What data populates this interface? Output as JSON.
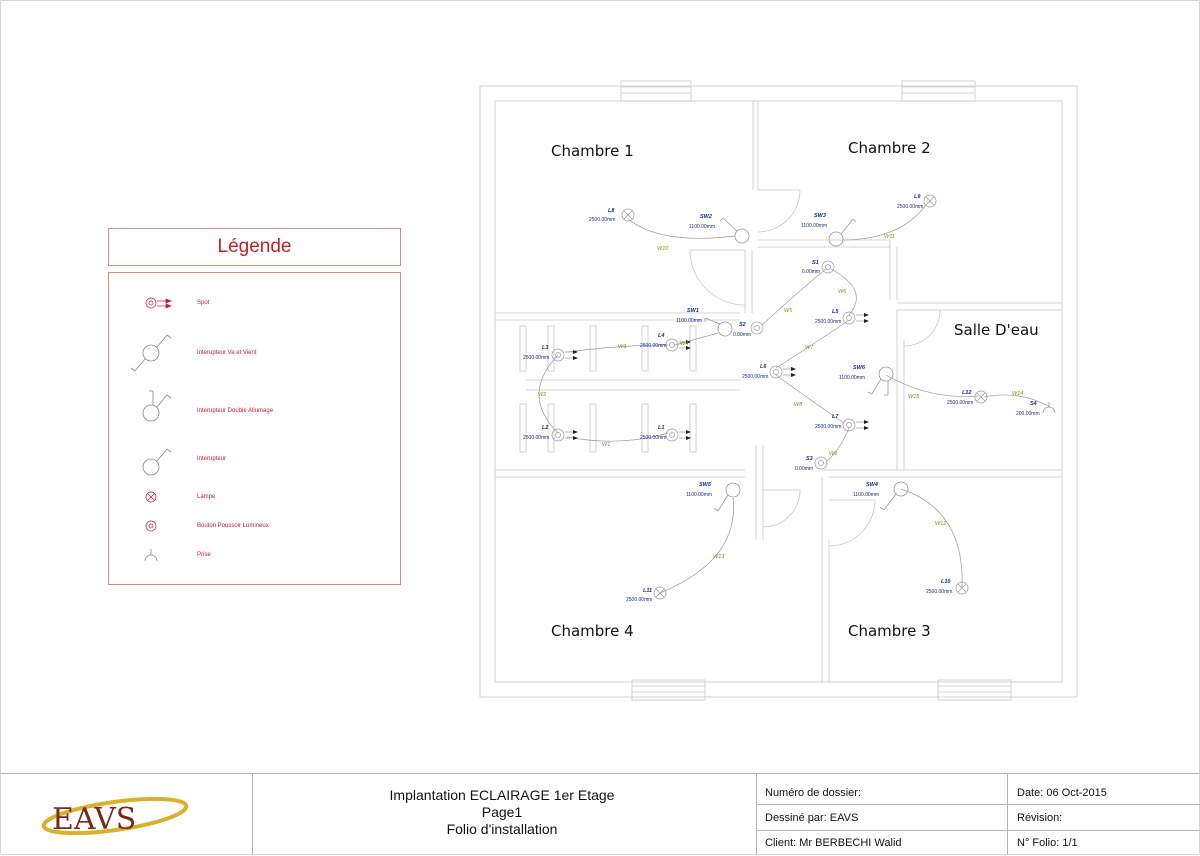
{
  "legend": {
    "title": "Légende",
    "items": [
      {
        "symbol": "spot-icon",
        "label": "Spot"
      },
      {
        "symbol": "two-way-switch-icon",
        "label": "Interupteur Va et Vient"
      },
      {
        "symbol": "double-switch-icon",
        "label": "Interupteur Double Allumage"
      },
      {
        "symbol": "switch-icon",
        "label": "Interupteur"
      },
      {
        "symbol": "lamp-icon",
        "label": "Lampe"
      },
      {
        "symbol": "push-button-icon",
        "label": "Bouton Poussoir Lumineux"
      },
      {
        "symbol": "outlet-icon",
        "label": "Prise"
      }
    ]
  },
  "rooms": {
    "chambre1": "Chambre 1",
    "chambre2": "Chambre 2",
    "chambre3": "Chambre 3",
    "chambre4": "Chambre 4",
    "salle_eau": "Salle D'eau"
  },
  "devices": {
    "L8": {
      "id": "L8",
      "dim": "2500.00mm"
    },
    "L9": {
      "id": "L9",
      "dim": "2500.00mm"
    },
    "L3": {
      "id": "L3",
      "dim": "2500.00mm"
    },
    "L4": {
      "id": "L4",
      "dim": "2500.00mm"
    },
    "L2": {
      "id": "L2",
      "dim": "2500.00mm"
    },
    "L1": {
      "id": "L1",
      "dim": "2500.00mm"
    },
    "L5": {
      "id": "L5",
      "dim": "2500.00mm"
    },
    "L6": {
      "id": "L6",
      "dim": "2500.00mm"
    },
    "L7": {
      "id": "L7",
      "dim": "2500.00mm"
    },
    "L10": {
      "id": "L10",
      "dim": "2500.00mm"
    },
    "L11": {
      "id": "L11",
      "dim": "2500.00mm"
    },
    "L12": {
      "id": "L12",
      "dim": "2500.00mm"
    },
    "SW1": {
      "id": "SW1",
      "dim": "1100.00mm"
    },
    "SW2": {
      "id": "SW2",
      "dim": "1100.00mm"
    },
    "SW3": {
      "id": "SW3",
      "dim": "1100.00mm"
    },
    "SW4": {
      "id": "SW4",
      "dim": "1100.00mm"
    },
    "SW5": {
      "id": "SW5",
      "dim": "1100.00mm"
    },
    "SW6": {
      "id": "SW6",
      "dim": "1100.00mm"
    },
    "S1": {
      "id": "S1",
      "dim": "0.00mm"
    },
    "S2": {
      "id": "S2",
      "dim": "0.00mm"
    },
    "S3": {
      "id": "S3",
      "dim": "0.00mm"
    },
    "S4": {
      "id": "S4",
      "dim": "200.00mm"
    }
  },
  "wires": [
    "W1",
    "W2",
    "W3",
    "W4",
    "W5",
    "W6",
    "W7",
    "W8",
    "W9",
    "W10",
    "W11",
    "W12",
    "W13",
    "W14",
    "W15"
  ],
  "title_block": {
    "logo_text": "EAVS",
    "title_line1": "Implantation ECLAIRAGE 1er Etage",
    "title_line2": "Page1",
    "title_line3": "Folio d'installation",
    "dossier": "Numéro de dossier:",
    "dessine": "Dessiné par: EAVS",
    "client": "Client: Mr BERBECHI Walid",
    "date": "Date: 06 Oct-2015",
    "revision": "Révision:",
    "folio": "N° Folio: 1/1"
  },
  "colors": {
    "legend_red": "#c21f2a",
    "label_blue": "#1a2a8a",
    "wire_olive": "#8a8a10",
    "wall_grey": "#c8c8c8",
    "logo_gold": "#d8b22a",
    "logo_brown": "#7a2a18"
  }
}
